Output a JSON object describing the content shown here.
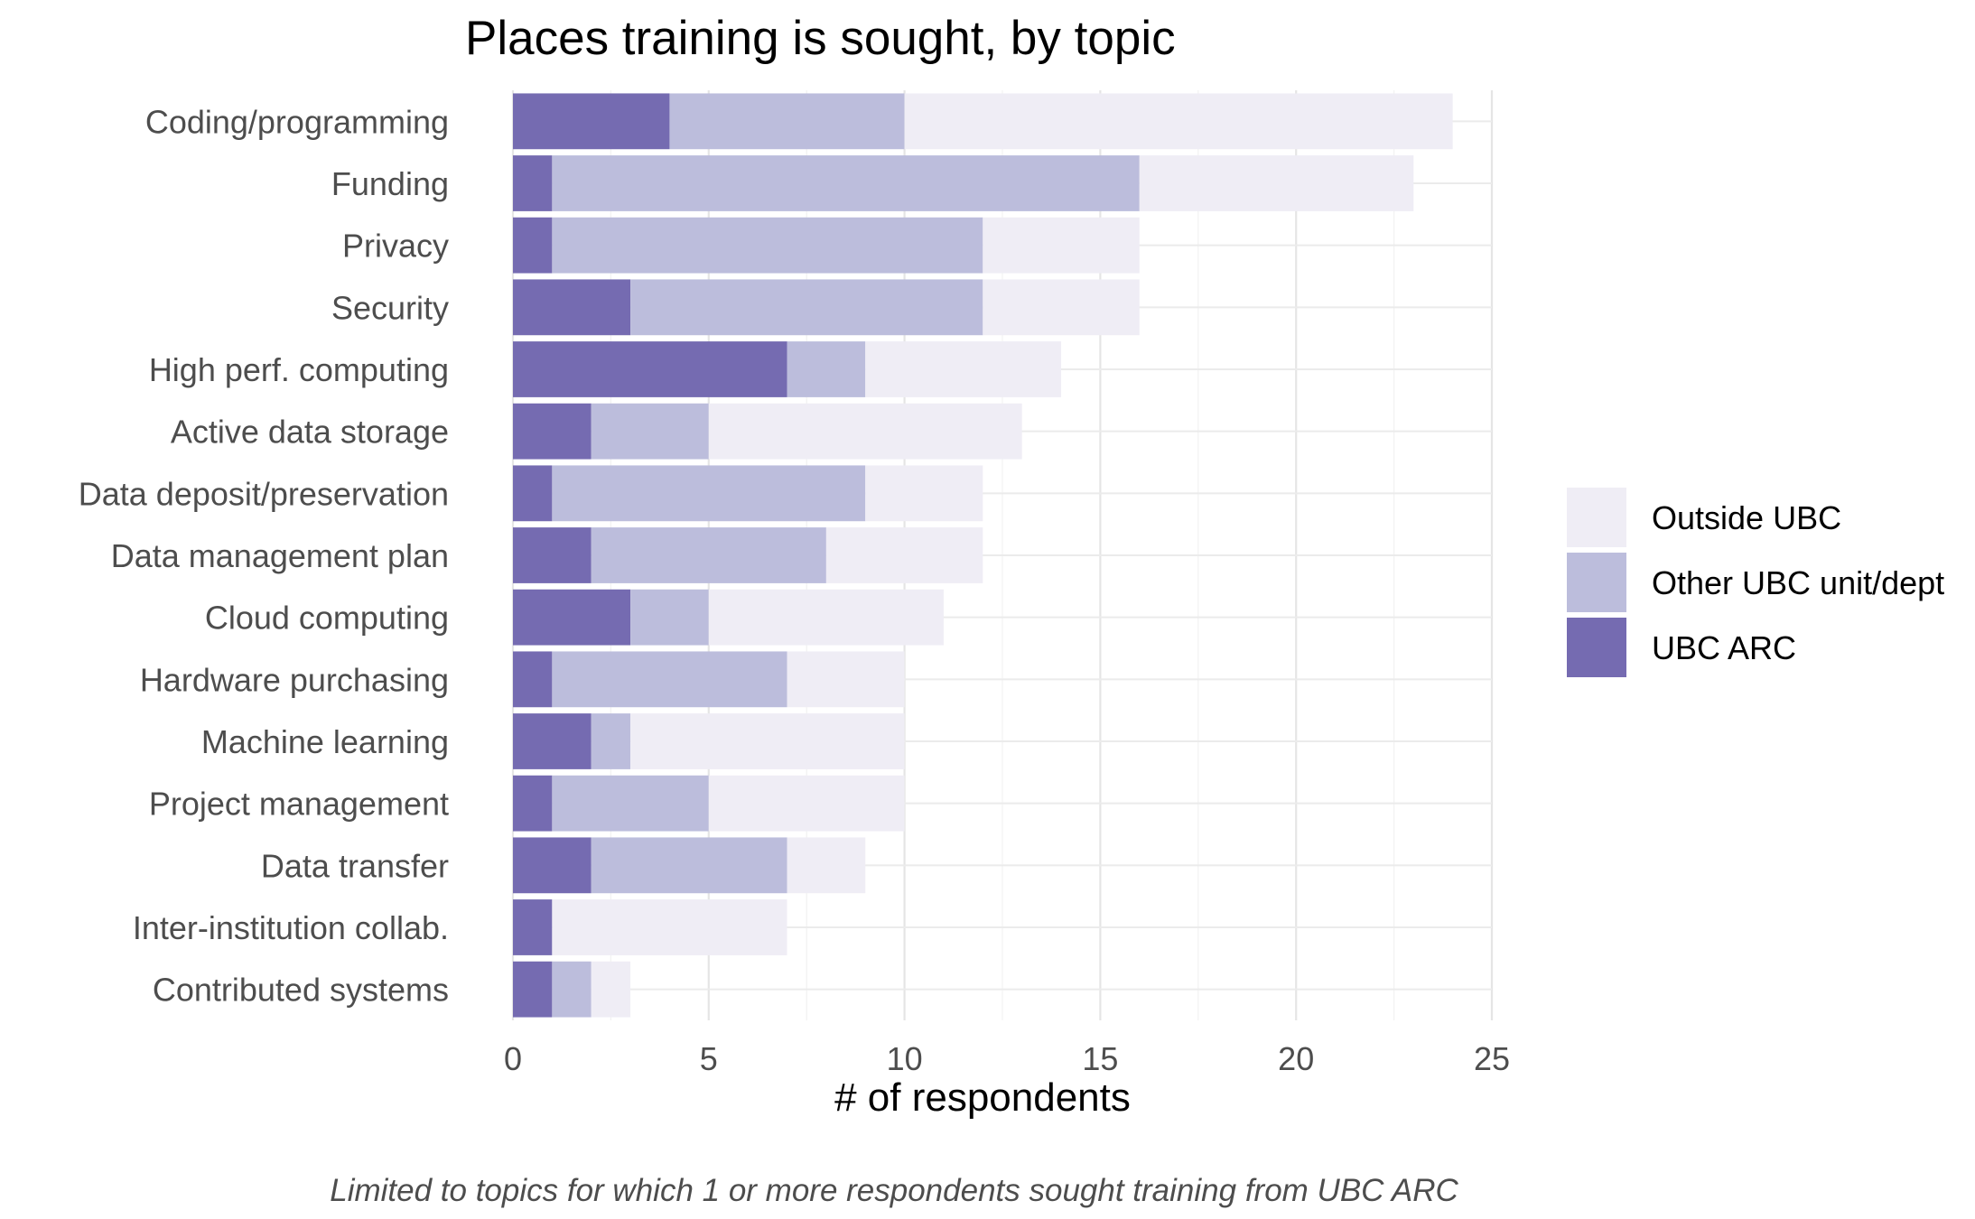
{
  "chart_data": {
    "type": "bar",
    "orientation": "horizontal",
    "stacked": true,
    "title": "Places training is sought, by topic",
    "xlabel": "# of respondents",
    "ylabel": "",
    "caption": "Limited to topics for which 1 or more respondents sought training from UBC ARC",
    "xlim": [
      0,
      25
    ],
    "x_ticks": [
      0,
      5,
      10,
      15,
      20,
      25
    ],
    "grid": true,
    "legend_position": "right",
    "categories": [
      "Coding/programming",
      "Funding",
      "Privacy",
      "Security",
      "High perf. computing",
      "Active data storage",
      "Data deposit/preservation",
      "Data management plan",
      "Cloud computing",
      "Hardware purchasing",
      "Machine learning",
      "Project management",
      "Data transfer",
      "Inter-institution collab.",
      "Contributed systems"
    ],
    "series": [
      {
        "name": "UBC ARC",
        "color": "#756bb1",
        "values": [
          4,
          1,
          1,
          3,
          7,
          2,
          1,
          2,
          3,
          1,
          2,
          1,
          2,
          1,
          1
        ]
      },
      {
        "name": "Other UBC unit/dept",
        "color": "#bcbddc",
        "values": [
          6,
          15,
          11,
          9,
          2,
          3,
          8,
          6,
          2,
          6,
          1,
          4,
          5,
          0,
          1
        ]
      },
      {
        "name": "Outside UBC",
        "color": "#efedf5",
        "values": [
          14,
          7,
          4,
          4,
          5,
          8,
          3,
          4,
          6,
          3,
          7,
          5,
          2,
          6,
          1
        ]
      }
    ],
    "legend_order": [
      "Outside UBC",
      "Other UBC unit/dept",
      "UBC ARC"
    ]
  }
}
